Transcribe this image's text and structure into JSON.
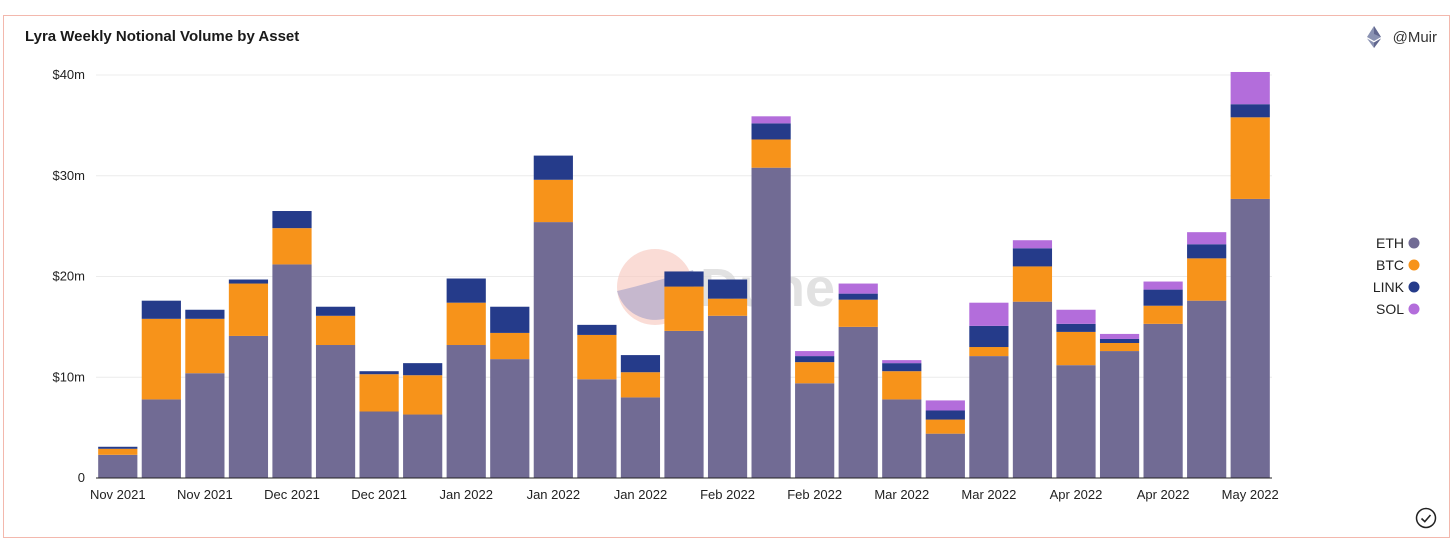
{
  "header": {
    "title": "Lyra Weekly Notional Volume by Asset",
    "author": "@Muir"
  },
  "watermark": {
    "text": "Dune"
  },
  "colors": {
    "ETH": "#716b94",
    "BTC": "#f7931a",
    "LINK": "#253b8a",
    "SOL": "#b36ddb"
  },
  "chart_data": {
    "type": "bar",
    "stacked": true,
    "title": "Lyra Weekly Notional Volume by Asset",
    "xlabel": "",
    "ylabel": "",
    "ylim": [
      0,
      40
    ],
    "y_unit": "millions USD",
    "y_ticks": [
      {
        "value": 0,
        "label": "0"
      },
      {
        "value": 10,
        "label": "$10m"
      },
      {
        "value": 20,
        "label": "$20m"
      },
      {
        "value": 30,
        "label": "$30m"
      },
      {
        "value": 40,
        "label": "$40m"
      }
    ],
    "x_tick_labels": [
      {
        "index": 0,
        "label": "Nov 2021"
      },
      {
        "index": 2,
        "label": "Nov 2021"
      },
      {
        "index": 4,
        "label": "Dec 2021"
      },
      {
        "index": 6,
        "label": "Dec 2021"
      },
      {
        "index": 8,
        "label": "Jan 2022"
      },
      {
        "index": 10,
        "label": "Jan 2022"
      },
      {
        "index": 12,
        "label": "Jan 2022"
      },
      {
        "index": 14,
        "label": "Feb 2022"
      },
      {
        "index": 16,
        "label": "Feb 2022"
      },
      {
        "index": 18,
        "label": "Mar 2022"
      },
      {
        "index": 20,
        "label": "Mar 2022"
      },
      {
        "index": 22,
        "label": "Apr 2022"
      },
      {
        "index": 24,
        "label": "Apr 2022"
      },
      {
        "index": 26,
        "label": "May 2022"
      }
    ],
    "legend_position": "right",
    "series": [
      {
        "name": "ETH",
        "values": [
          2.3,
          7.8,
          10.4,
          14.1,
          21.2,
          13.2,
          6.6,
          6.3,
          13.2,
          11.8,
          25.4,
          9.8,
          8.0,
          14.6,
          16.1,
          30.8,
          9.4,
          15.0,
          7.8,
          4.4,
          12.1,
          17.5,
          11.2,
          12.6,
          15.3,
          17.6,
          27.7
        ]
      },
      {
        "name": "BTC",
        "values": [
          0.6,
          8.0,
          5.4,
          5.2,
          3.6,
          2.9,
          3.7,
          3.9,
          4.2,
          2.6,
          4.2,
          4.4,
          2.5,
          4.4,
          1.7,
          2.8,
          2.1,
          2.7,
          2.8,
          1.4,
          0.9,
          3.5,
          3.3,
          0.8,
          1.8,
          4.2,
          8.1
        ]
      },
      {
        "name": "LINK",
        "values": [
          0.2,
          1.8,
          0.9,
          0.4,
          1.7,
          0.9,
          0.3,
          1.2,
          2.4,
          2.6,
          2.4,
          1.0,
          1.7,
          1.5,
          1.9,
          1.6,
          0.6,
          0.6,
          0.8,
          0.9,
          2.1,
          1.8,
          0.8,
          0.4,
          1.6,
          1.4,
          1.3
        ]
      },
      {
        "name": "SOL",
        "values": [
          0,
          0,
          0,
          0,
          0,
          0,
          0,
          0,
          0,
          0,
          0,
          0,
          0,
          0,
          0,
          0.7,
          0.5,
          1.0,
          0.3,
          1.0,
          2.3,
          0.8,
          1.4,
          0.5,
          0.8,
          1.2,
          3.2
        ]
      }
    ]
  }
}
